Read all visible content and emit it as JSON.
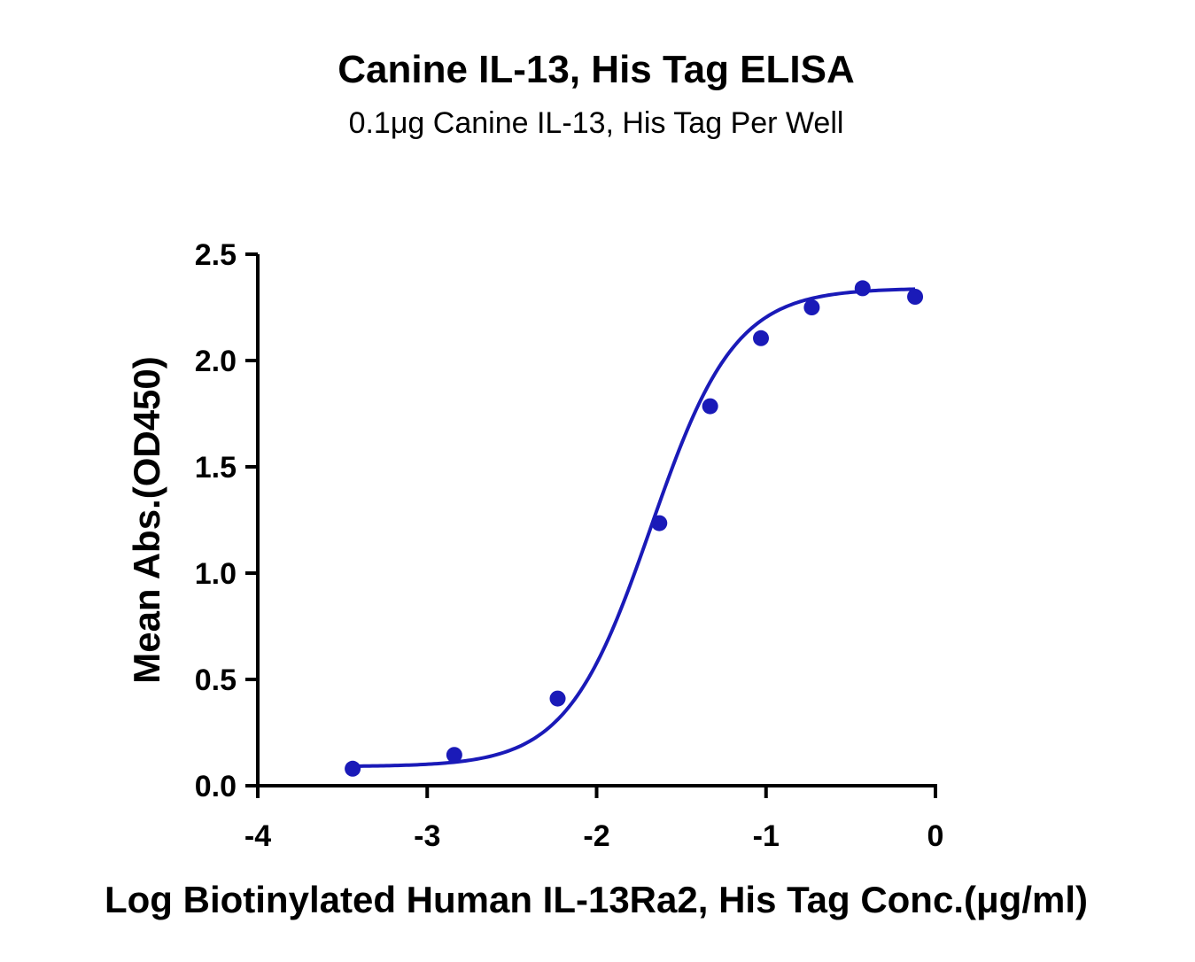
{
  "chart_data": {
    "type": "scatter",
    "title": "Canine IL-13, His Tag ELISA",
    "subtitle": "0.1μg Canine IL-13, His Tag Per Well",
    "xlabel": "Log Biotinylated Human IL-13Ra2, His Tag Conc.(μg/ml)",
    "ylabel": "Mean Abs.(OD450)",
    "xlim": [
      -4,
      0
    ],
    "ylim": [
      0,
      2.5
    ],
    "x_ticks": [
      -4,
      -3,
      -2,
      -1,
      0
    ],
    "x_tick_labels": [
      "-4",
      "-3",
      "-2",
      "-1",
      "0"
    ],
    "y_ticks": [
      0,
      0.5,
      1.0,
      1.5,
      2.0,
      2.5
    ],
    "y_tick_labels": [
      "0.0",
      "0.5",
      "1.0",
      "1.5",
      "2.0",
      "2.5"
    ],
    "grid": false,
    "legend": "none",
    "color": "#1a1ab8",
    "series": [
      {
        "x": [
          -3.44,
          -2.84,
          -2.23,
          -1.63,
          -1.33,
          -1.03,
          -0.73,
          -0.43,
          -0.12
        ],
        "y": [
          0.08,
          0.145,
          0.41,
          1.235,
          1.785,
          2.105,
          2.25,
          2.34,
          2.3
        ]
      }
    ],
    "fit_curve": {
      "type": "four-parameter logistic",
      "bottom": 0.09,
      "top": 2.34,
      "logEC50": -1.68,
      "hill": 1.75,
      "x_range": [
        -3.44,
        -0.12
      ]
    }
  }
}
